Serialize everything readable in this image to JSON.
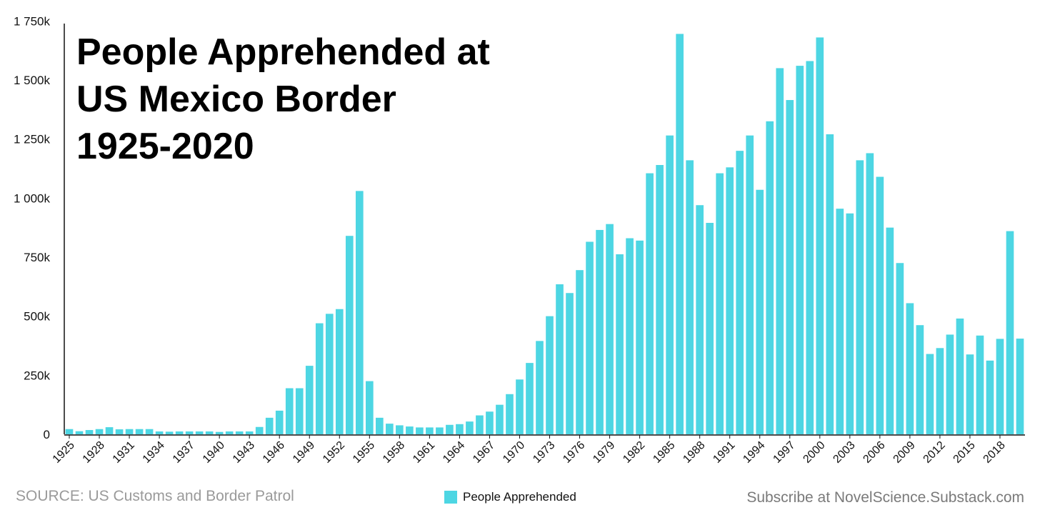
{
  "chart_data": {
    "type": "bar",
    "title_lines": [
      "People Apprehended at",
      "US Mexico Border",
      "1925-2020"
    ],
    "series": [
      {
        "name": "People Apprehended",
        "values": [
          22,
          13,
          18,
          22,
          30,
          21,
          22,
          22,
          22,
          12,
          11,
          12,
          12,
          12,
          12,
          10,
          12,
          12,
          12,
          31,
          70,
          100,
          195,
          195,
          290,
          470,
          510,
          530,
          840,
          1030,
          225,
          70,
          45,
          38,
          33,
          29,
          29,
          29,
          40,
          43,
          54,
          80,
          96,
          125,
          170,
          232,
          302,
          395,
          500,
          635,
          598,
          695,
          815,
          865,
          890,
          762,
          830,
          820,
          1105,
          1140,
          1265,
          1695,
          1160,
          970,
          895,
          1105,
          1130,
          1200,
          1265,
          1035,
          1325,
          1550,
          1415,
          1560,
          1580,
          1680,
          1270,
          955,
          935,
          1160,
          1190,
          1090,
          875,
          725,
          555,
          462,
          340,
          365,
          422,
          490,
          338,
          418,
          312,
          404,
          860,
          405
        ]
      }
    ],
    "x_start_year": 1925,
    "x_tick_labels": [
      "1925",
      "1928",
      "1931",
      "1934",
      "1937",
      "1940",
      "1943",
      "1946",
      "1949",
      "1952",
      "1955",
      "1958",
      "1961",
      "1964",
      "1967",
      "1970",
      "1973",
      "1976",
      "1979",
      "1982",
      "1985",
      "1988",
      "1991",
      "1994",
      "1997",
      "2000",
      "2003",
      "2006",
      "2009",
      "2012",
      "2015",
      "2018"
    ],
    "y_tick_labels": [
      "0",
      "250k",
      "500k",
      "750k",
      "1 000k",
      "1 250k",
      "1 500k",
      "1 750k"
    ],
    "y_tick_values": [
      0,
      250,
      500,
      750,
      1000,
      1250,
      1500,
      1750
    ],
    "ylim": [
      0,
      1775
    ],
    "bar_color": "#4dd6e3",
    "grid": false
  },
  "legend": {
    "label": "People Apprehended",
    "color": "#4dd6e3"
  },
  "footer": {
    "source": "SOURCE: US Customs and Border Patrol",
    "subscribe": "Subscribe at NovelScience.Substack.com"
  }
}
